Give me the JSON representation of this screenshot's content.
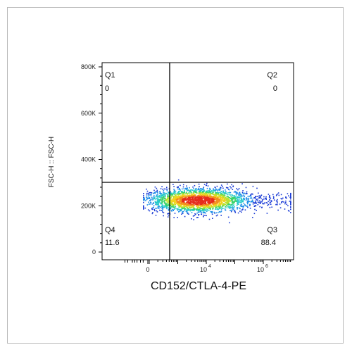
{
  "chart_data": {
    "type": "scatter",
    "plot_kind": "flow-cytometry-density-dot-plot",
    "xlabel": "CD152/CTLA-4-PE",
    "ylabel": "FSC-H :: FSC-H",
    "y_ticks": [
      {
        "label": "0",
        "value": 0
      },
      {
        "label": "200K",
        "value": 200000
      },
      {
        "label": "400K",
        "value": 400000
      },
      {
        "label": "600K",
        "value": 600000
      },
      {
        "label": "800K",
        "value": 800000
      }
    ],
    "x_ticks": [
      {
        "label": "0",
        "value": 0
      },
      {
        "base": "10",
        "exp": "4",
        "value": 10000
      },
      {
        "base": "10",
        "exp": "6",
        "value": 1000000
      }
    ],
    "ylim": [
      0,
      800000
    ],
    "gate": {
      "x": 1000,
      "y": 300000
    },
    "quadrants": [
      {
        "name": "Q1",
        "percent": "0",
        "position": "top-left"
      },
      {
        "name": "Q2",
        "percent": "0",
        "position": "top-right"
      },
      {
        "name": "Q3",
        "percent": "88.4",
        "position": "bottom-right"
      },
      {
        "name": "Q4",
        "percent": "11.6",
        "position": "bottom-left"
      }
    ],
    "population": {
      "x_peak": 5000,
      "y_center": 225000,
      "y_spread": 25000,
      "x_range": [
        -3000,
        3000000
      ]
    },
    "density_colors": [
      "#1a3bd6",
      "#1f8fe8",
      "#22c9c9",
      "#3ad36a",
      "#b8e02a",
      "#f2d21b",
      "#f28c1b",
      "#e62b1b"
    ],
    "grid": false,
    "legend": "none"
  }
}
